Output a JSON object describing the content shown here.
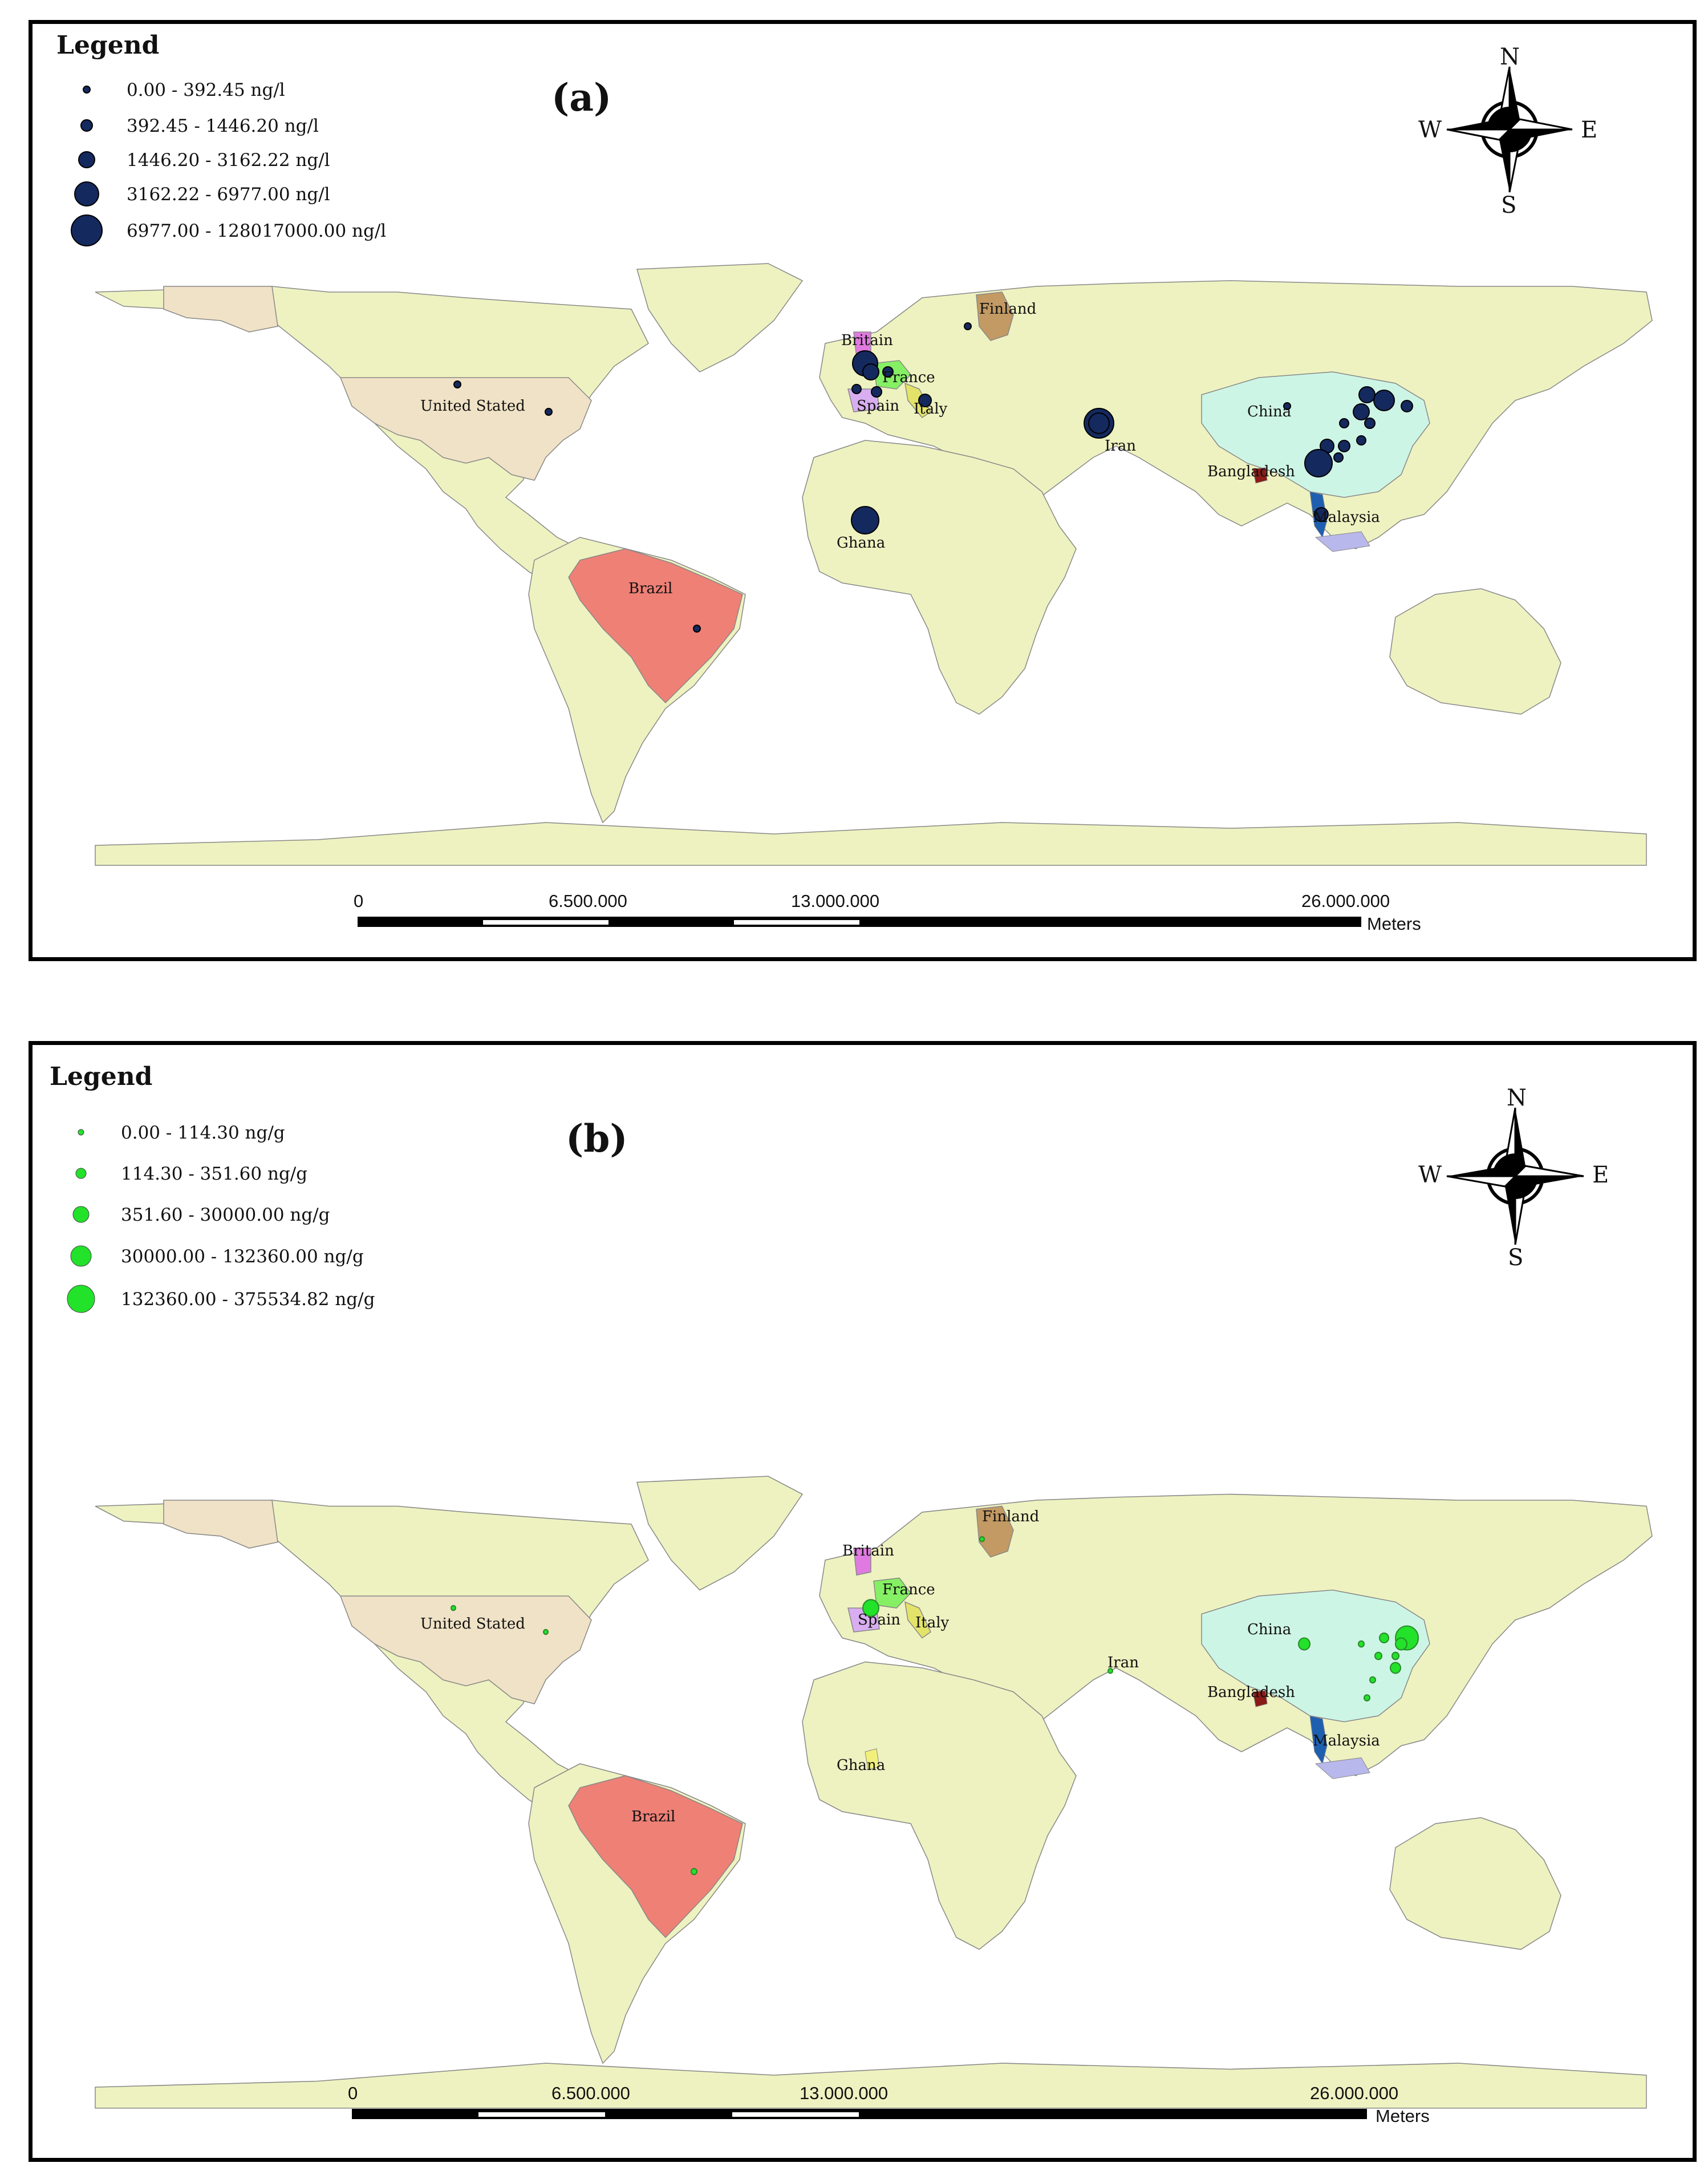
{
  "panels": [
    {
      "id": "a",
      "label": "(a)",
      "legend_title": "Legend",
      "legend_items": [
        "0.00 - 392.45  ng/l",
        "392.45 - 1446.20  ng/l",
        "1446.20 - 3162.22  ng/l",
        "3162.22 - 6977.00  ng/l",
        "6977.00 - 128017000.00  ng/l"
      ],
      "symbol_color": "#14295e",
      "compass": {
        "n": "N",
        "s": "S",
        "e": "E",
        "w": "W"
      },
      "scale": {
        "ticks": [
          "0",
          "6.500.000",
          "13.000.000",
          "26.000.000"
        ],
        "unit": "Meters"
      },
      "countries": {
        "us": "United Stated",
        "brazil": "Brazil",
        "finland": "Finland",
        "britain": "Britain",
        "france": "France",
        "spain": "Spain",
        "italy": "Italy",
        "iran": "Iran",
        "ghana": "Ghana",
        "china": "China",
        "bangladesh": "Bangladesh",
        "malaysia": "Malaysia"
      }
    },
    {
      "id": "b",
      "label": "(b)",
      "legend_title": "Legend",
      "legend_items": [
        "0.00 - 114.30 ng/g",
        "114.30 - 351.60 ng/g",
        "351.60 - 30000.00 ng/g",
        "30000.00 - 132360.00 ng/g",
        "132360.00 - 375534.82 ng/g"
      ],
      "symbol_color": "#22e22a",
      "compass": {
        "n": "N",
        "s": "S",
        "e": "E",
        "w": "W"
      },
      "scale": {
        "ticks": [
          "0",
          "6.500.000",
          "13.000.000",
          "26.000.000"
        ],
        "unit": "Meters"
      },
      "countries": {
        "us": "United Stated",
        "brazil": "Brazil",
        "finland": "Finland",
        "britain": "Britain",
        "france": "France",
        "spain": "Spain",
        "italy": "Italy",
        "iran": "Iran",
        "ghana": "Ghana",
        "china": "China",
        "bangladesh": "Bangladesh",
        "malaysia": "Malaysia"
      }
    }
  ],
  "colors": {
    "land": "#eef2c0",
    "us_fill": "#f0e2c6",
    "brazil_fill": "#ee8076",
    "china_fill": "#cdf5e6",
    "finland_fill": "#c39a63",
    "france_fill": "#86f064",
    "spain_fill": "#d8aef0",
    "britain_fill": "#e07ae0",
    "vietnam_fill": "#1f5fb0",
    "bangladesh_fill": "#8a1a16",
    "malaysia_fill": "#b9b8ec",
    "italy_fill": "#e3e36a",
    "ghana_fill": "#f2f07a"
  }
}
